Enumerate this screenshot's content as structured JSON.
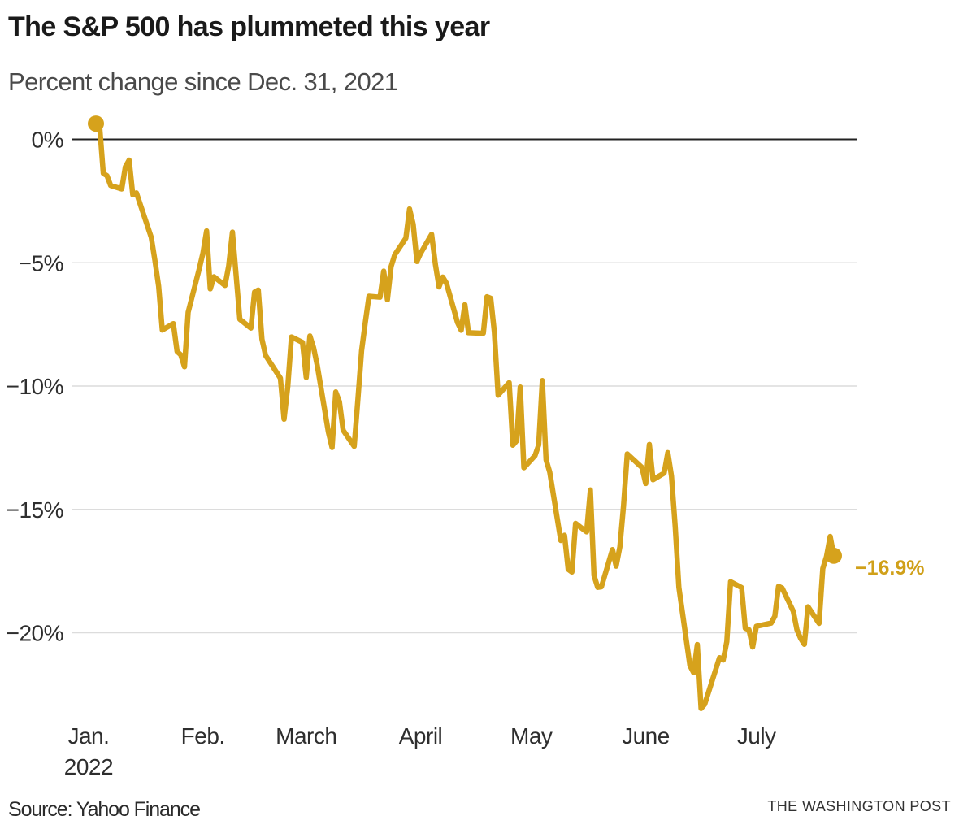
{
  "header": {
    "title": "The S&P 500 has plummeted this year",
    "subtitle": "Percent change since Dec. 31, 2021"
  },
  "footer": {
    "source": "Source: Yahoo Finance",
    "credit": "THE WASHINGTON POST"
  },
  "colors": {
    "line": "#D6A21C",
    "marker": "#D6A21C",
    "end_label": "#D0A019",
    "grid": "#DCDCDC",
    "zero_line": "#222222",
    "title": "#1A1A1A",
    "subtitle": "#4A4A4A",
    "tick": "#2E2E2E"
  },
  "chart_data": {
    "type": "line",
    "title": "The S&P 500 has plummeted this year",
    "subtitle": "Percent change since Dec. 31, 2021",
    "xlabel": "",
    "ylabel": "Percent change since Dec. 31, 2021 (%)",
    "ylim": [
      -24.5,
      1.5
    ],
    "x_range": [
      "2022-01-03",
      "2022-07-22"
    ],
    "grid": "horizontal",
    "legend": "none",
    "end_label": "−16.9%",
    "y_ticks": [
      {
        "label": "0%",
        "value": 0
      },
      {
        "label": "−5%",
        "value": -5
      },
      {
        "label": "−10%",
        "value": -10
      },
      {
        "label": "−15%",
        "value": -15
      },
      {
        "label": "−20%",
        "value": -20
      }
    ],
    "x_ticks": [
      {
        "label": "Jan.",
        "label2": "2022",
        "date": "2022-01-01"
      },
      {
        "label": "Feb.",
        "date": "2022-02-01"
      },
      {
        "label": "March",
        "date": "2022-03-01"
      },
      {
        "label": "April",
        "date": "2022-04-01"
      },
      {
        "label": "May",
        "date": "2022-05-01"
      },
      {
        "label": "June",
        "date": "2022-06-01"
      },
      {
        "label": "July",
        "date": "2022-07-01"
      }
    ],
    "series": [
      {
        "name": "S&P 500 percent change since Dec. 31, 2021",
        "color": "#D6A21C",
        "dates": [
          "01-03",
          "01-04",
          "01-05",
          "01-06",
          "01-07",
          "01-10",
          "01-11",
          "01-12",
          "01-13",
          "01-14",
          "01-18",
          "01-19",
          "01-20",
          "01-21",
          "01-24",
          "01-25",
          "01-26",
          "01-27",
          "01-28",
          "01-31",
          "02-01",
          "02-02",
          "02-03",
          "02-04",
          "02-07",
          "02-08",
          "02-09",
          "02-10",
          "02-11",
          "02-14",
          "02-15",
          "02-16",
          "02-17",
          "02-18",
          "02-22",
          "02-23",
          "02-24",
          "02-25",
          "02-28",
          "03-01",
          "03-02",
          "03-03",
          "03-04",
          "03-07",
          "03-08",
          "03-09",
          "03-10",
          "03-11",
          "03-14",
          "03-15",
          "03-16",
          "03-17",
          "03-18",
          "03-21",
          "03-22",
          "03-23",
          "03-24",
          "03-25",
          "03-28",
          "03-29",
          "03-30",
          "03-31",
          "04-01",
          "04-04",
          "04-05",
          "04-06",
          "04-07",
          "04-08",
          "04-11",
          "04-12",
          "04-13",
          "04-14",
          "04-18",
          "04-19",
          "04-20",
          "04-21",
          "04-22",
          "04-25",
          "04-26",
          "04-27",
          "04-28",
          "04-29",
          "05-02",
          "05-03",
          "05-04",
          "05-05",
          "05-06",
          "05-09",
          "05-10",
          "05-11",
          "05-12",
          "05-13",
          "05-16",
          "05-17",
          "05-18",
          "05-19",
          "05-20",
          "05-23",
          "05-24",
          "05-25",
          "05-26",
          "05-27",
          "05-31",
          "06-01",
          "06-02",
          "06-03",
          "06-06",
          "06-07",
          "06-08",
          "06-09",
          "06-10",
          "06-13",
          "06-14",
          "06-15",
          "06-16",
          "06-17",
          "06-21",
          "06-22",
          "06-23",
          "06-24",
          "06-27",
          "06-28",
          "06-29",
          "06-30",
          "07-01",
          "07-05",
          "07-06",
          "07-07",
          "07-08",
          "07-11",
          "07-12",
          "07-13",
          "07-14",
          "07-15",
          "07-18",
          "07-19",
          "07-20",
          "07-21",
          "07-22"
        ],
        "values": [
          0.64,
          0.57,
          -1.38,
          -1.47,
          -1.87,
          -2.01,
          -1.11,
          -0.84,
          -2.25,
          -2.17,
          -3.97,
          -4.9,
          -5.95,
          -7.73,
          -7.47,
          -8.6,
          -8.73,
          -9.22,
          -7.01,
          -5.26,
          -4.61,
          -3.71,
          -6.06,
          -5.57,
          -5.92,
          -5.13,
          -3.76,
          -5.5,
          -7.29,
          -7.65,
          -6.19,
          -6.11,
          -8.1,
          -8.76,
          -9.68,
          -11.34,
          -10.02,
          -8.01,
          -8.23,
          -9.65,
          -7.97,
          -8.45,
          -9.17,
          -11.86,
          -12.49,
          -10.24,
          -10.63,
          -11.79,
          -12.44,
          -10.57,
          -8.57,
          -7.44,
          -6.36,
          -6.4,
          -5.34,
          -6.5,
          -5.16,
          -4.68,
          -4.0,
          -2.82,
          -3.44,
          -4.95,
          -4.62,
          -3.85,
          -5.06,
          -5.98,
          -5.58,
          -5.83,
          -7.42,
          -7.74,
          -6.7,
          -7.84,
          -7.86,
          -6.38,
          -6.44,
          -7.82,
          -10.37,
          -9.86,
          -12.4,
          -12.22,
          -10.04,
          -13.31,
          -12.82,
          -12.39,
          -9.78,
          -12.99,
          -13.49,
          -16.26,
          -16.05,
          -17.43,
          -17.54,
          -15.57,
          -15.91,
          -14.21,
          -17.68,
          -18.16,
          -18.14,
          -16.63,
          -17.3,
          -16.52,
          -14.86,
          -12.75,
          -13.3,
          -13.95,
          -12.37,
          -13.8,
          -13.53,
          -12.7,
          -13.65,
          -15.7,
          -18.16,
          -21.33,
          -21.62,
          -20.48,
          -23.07,
          -22.9,
          -21.01,
          -21.11,
          -20.36,
          -17.93,
          -18.17,
          -19.82,
          -19.88,
          -20.58,
          -19.74,
          -19.61,
          -19.33,
          -18.12,
          -18.19,
          -19.13,
          -19.88,
          -20.23,
          -20.47,
          -18.95,
          -19.62,
          -17.4,
          -16.92,
          -16.1,
          -16.88
        ]
      }
    ]
  }
}
